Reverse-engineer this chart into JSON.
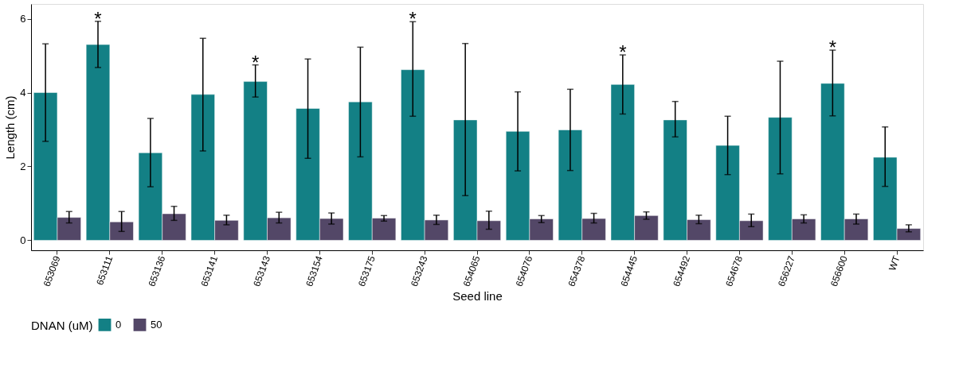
{
  "chart_data": {
    "type": "bar",
    "xlabel": "Seed line",
    "ylabel": "Length (cm)",
    "legend_title": "DNAN (uM)",
    "legend": "bottom",
    "grid": false,
    "categories": [
      "653069",
      "653111",
      "653136",
      "653141",
      "653143",
      "653154",
      "653175",
      "653243",
      "654065",
      "654076",
      "654378",
      "654445",
      "654492",
      "654678",
      "656227",
      "656600",
      "WT"
    ],
    "ylim": [
      -0.27,
      6.4
    ],
    "yticks": [
      0,
      2,
      4,
      6
    ],
    "series": [
      {
        "name": "0",
        "color": "#138085",
        "values": [
          4.0,
          5.3,
          2.37,
          3.95,
          4.3,
          3.57,
          3.75,
          4.62,
          3.26,
          2.95,
          2.99,
          4.22,
          3.26,
          2.57,
          3.33,
          4.25,
          2.25
        ],
        "errors": [
          [
            2.68,
            5.32
          ],
          [
            4.68,
            5.93
          ],
          [
            1.45,
            3.3
          ],
          [
            2.42,
            5.47
          ],
          [
            3.88,
            4.75
          ],
          [
            2.22,
            4.91
          ],
          [
            2.26,
            5.23
          ],
          [
            3.36,
            5.92
          ],
          [
            1.21,
            5.33
          ],
          [
            1.88,
            4.02
          ],
          [
            1.89,
            4.09
          ],
          [
            3.42,
            5.02
          ],
          [
            2.8,
            3.76
          ],
          [
            1.78,
            3.36
          ],
          [
            1.8,
            4.85
          ],
          [
            3.37,
            5.15
          ],
          [
            1.46,
            3.07
          ]
        ]
      },
      {
        "name": "50",
        "color": "#534767",
        "values": [
          0.62,
          0.5,
          0.72,
          0.54,
          0.61,
          0.59,
          0.6,
          0.55,
          0.53,
          0.58,
          0.59,
          0.67,
          0.56,
          0.53,
          0.58,
          0.58,
          0.32
        ],
        "errors": [
          [
            0.47,
            0.78
          ],
          [
            0.24,
            0.78
          ],
          [
            0.54,
            0.92
          ],
          [
            0.42,
            0.68
          ],
          [
            0.47,
            0.76
          ],
          [
            0.44,
            0.74
          ],
          [
            0.52,
            0.67
          ],
          [
            0.43,
            0.68
          ],
          [
            0.3,
            0.79
          ],
          [
            0.48,
            0.67
          ],
          [
            0.47,
            0.73
          ],
          [
            0.57,
            0.77
          ],
          [
            0.45,
            0.68
          ],
          [
            0.37,
            0.71
          ],
          [
            0.47,
            0.69
          ],
          [
            0.44,
            0.71
          ],
          [
            0.23,
            0.42
          ]
        ]
      }
    ],
    "annotations": [
      {
        "text": "*",
        "x": "653111",
        "y": 5.3
      },
      {
        "text": "*",
        "x": "653143",
        "y": 4.3
      },
      {
        "text": "*",
        "x": "653243",
        "y": 4.62
      },
      {
        "text": "*",
        "x": "654445",
        "y": 4.22
      },
      {
        "text": "*",
        "x": "656600",
        "y": 4.25
      }
    ]
  }
}
